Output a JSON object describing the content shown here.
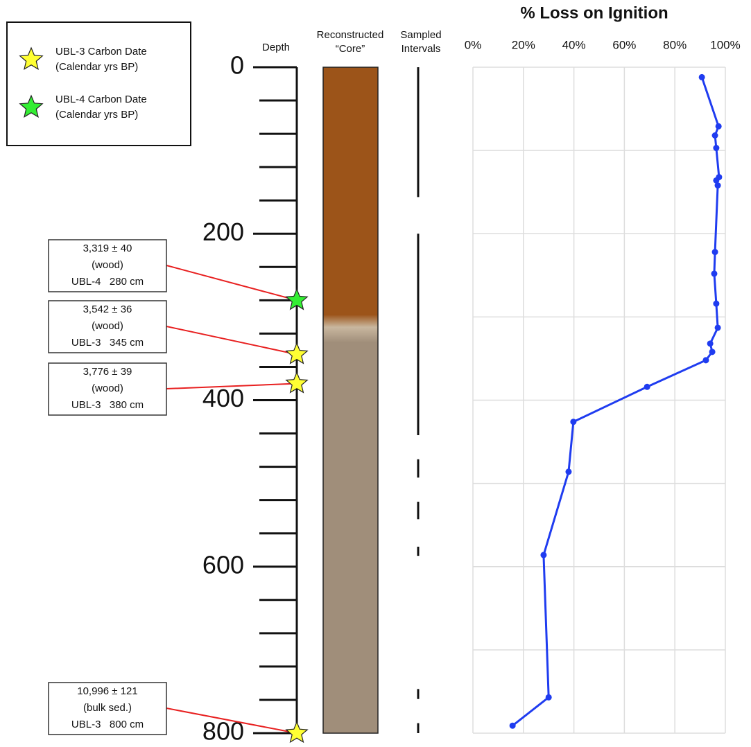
{
  "chart_data": {
    "type": "line",
    "title": "% Loss on Ignition",
    "xlim": [
      0,
      100
    ],
    "xticks": [
      {
        "value": 0,
        "label": "0%"
      },
      {
        "value": 20,
        "label": "20%"
      },
      {
        "value": 40,
        "label": "40%"
      },
      {
        "value": 60,
        "label": "60%"
      },
      {
        "value": 80,
        "label": "80%"
      },
      {
        "value": 100,
        "label": "100%"
      }
    ],
    "ylim": [
      0,
      800
    ],
    "y_reversed": true,
    "yticks": [
      0,
      200,
      400,
      600,
      800
    ],
    "minor_yticks": [
      40,
      80,
      120,
      160,
      240,
      280,
      320,
      360,
      440,
      480,
      520,
      560,
      640,
      680,
      720,
      760
    ],
    "grid_yticks": [
      0,
      100,
      200,
      300,
      400,
      500,
      600,
      700,
      800
    ],
    "grid": true,
    "series": [
      {
        "color": "#1f3cf0",
        "x": [
          90.7,
          97.3,
          95.9,
          96.4,
          97.5,
          96.4,
          97.0,
          95.9,
          95.6,
          96.4,
          97.0,
          94.0,
          94.8,
          92.3,
          69.0,
          39.8,
          37.9,
          28.0,
          30.0,
          15.7
        ],
        "values": [
          12,
          71,
          82,
          97,
          132,
          136,
          142,
          222,
          248,
          284,
          313,
          332,
          342,
          352,
          384,
          426,
          486,
          586,
          757,
          791
        ]
      }
    ]
  },
  "columns": {
    "depth": "Depth",
    "core": [
      "Reconstructed",
      "“Core”"
    ],
    "sampled": [
      "Sampled",
      "Intervals"
    ]
  },
  "core_units": [
    {
      "top": 0,
      "bottom": 298,
      "color": "#9c5419"
    },
    {
      "top": 330,
      "bottom": 800,
      "color": "#a08e7a"
    }
  ],
  "sampled_intervals": [
    [
      0,
      156
    ],
    [
      200,
      442
    ],
    [
      471,
      493
    ],
    [
      522,
      543
    ],
    [
      576,
      587
    ],
    [
      747,
      759
    ],
    [
      788,
      800
    ]
  ],
  "legend": [
    {
      "label": [
        "UBL-3 Carbon Date",
        "(Calendar yrs BP)"
      ],
      "color": "#ffff33"
    },
    {
      "label": [
        "UBL-4 Carbon Date",
        "(Calendar yrs BP)"
      ],
      "color": "#33ee33"
    }
  ],
  "dates": [
    {
      "lines": [
        "3,319 ± 40",
        "(wood)",
        "UBL-4   280 cm"
      ],
      "depth": 280,
      "color": "#33ee33"
    },
    {
      "lines": [
        "3,542 ± 36",
        "(wood)",
        "UBL-3   345 cm"
      ],
      "depth": 345,
      "color": "#ffff33"
    },
    {
      "lines": [
        "3,776 ± 39",
        "(wood)",
        "UBL-3   380 cm"
      ],
      "depth": 380,
      "color": "#ffff33"
    },
    {
      "lines": [
        "10,996 ± 121",
        "(bulk sed.)",
        "UBL-3   800 cm"
      ],
      "depth": 800,
      "color": "#ffff33"
    }
  ]
}
